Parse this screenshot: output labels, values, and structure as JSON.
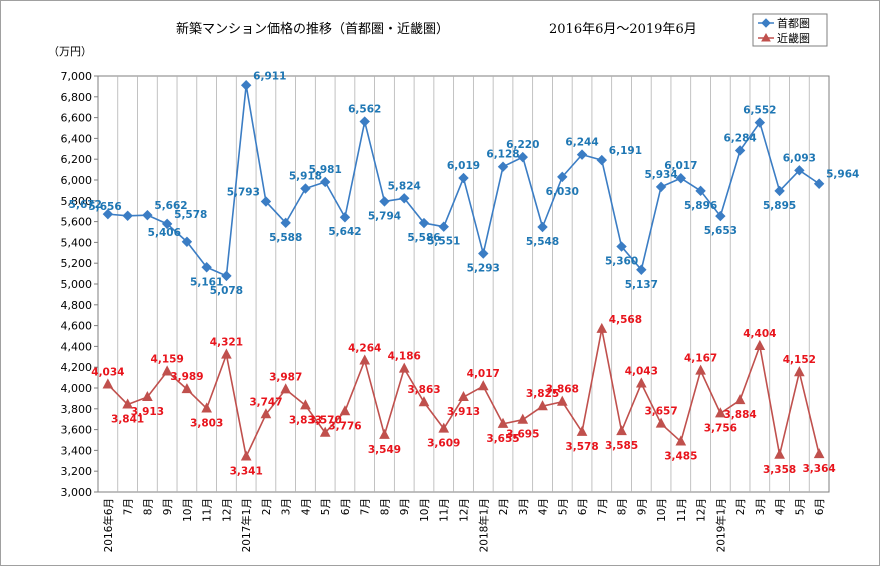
{
  "chart_data": {
    "type": "line",
    "title": "新築マンション価格の推移（首都圏・近畿圏）",
    "subtitle": "2016年6月～2019年6月",
    "ylabel": "（万円）",
    "ylim": [
      3000,
      7000
    ],
    "ystep": 200,
    "legend_position": "top-right",
    "categories": [
      "2016年6月",
      "7月",
      "8月",
      "9月",
      "10月",
      "11月",
      "12月",
      "2017年1月",
      "2月",
      "3月",
      "4月",
      "5月",
      "6月",
      "7月",
      "8月",
      "9月",
      "10月",
      "11月",
      "12月",
      "2018年1月",
      "2月",
      "3月",
      "4月",
      "5月",
      "6月",
      "7月",
      "8月",
      "9月",
      "10月",
      "11月",
      "12月",
      "2019年1月",
      "2月",
      "3月",
      "4月",
      "5月",
      "6月"
    ],
    "series": [
      {
        "name": "首都圏",
        "color": "#3b7dc4",
        "label_color": "#1f77b4",
        "marker": "diamond",
        "values": [
          5672,
          5656,
          5662,
          5578,
          5406,
          5161,
          5078,
          6911,
          5793,
          5588,
          5918,
          5981,
          5642,
          6562,
          5794,
          5824,
          5586,
          5551,
          6019,
          5293,
          6128,
          6220,
          5548,
          6030,
          6244,
          6191,
          5360,
          5137,
          5934,
          6017,
          5896,
          5653,
          6284,
          6552,
          5895,
          6093,
          5964
        ]
      },
      {
        "name": "近畿圏",
        "color": "#c0504d",
        "label_color": "#e8141c",
        "marker": "triangle",
        "values": [
          4034,
          3841,
          3913,
          4159,
          3989,
          3803,
          4321,
          3341,
          3747,
          3987,
          3833,
          3570,
          3776,
          4264,
          3549,
          4186,
          3863,
          3609,
          3913,
          4017,
          3655,
          3695,
          3825,
          3868,
          3578,
          4568,
          3585,
          4043,
          3657,
          3485,
          4167,
          3756,
          3884,
          4404,
          3358,
          4152,
          3364
        ]
      }
    ]
  }
}
